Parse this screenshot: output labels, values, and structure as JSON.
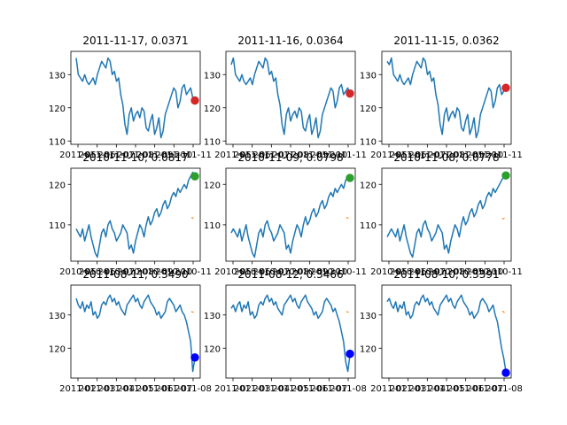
{
  "chart_data": [
    {
      "type": "line",
      "title": "2011-11-17, 0.0371",
      "xlabel": "",
      "ylabel": "",
      "ylim": [
        109,
        137
      ],
      "yticks": [
        110,
        120,
        130
      ],
      "xtick_labels": [
        "2011-05",
        "2011-06",
        "2011-07",
        "2011-08",
        "2011-09",
        "2011-10",
        "2011-11"
      ],
      "series": [
        {
          "color": "#1f77b4",
          "values": [
            135,
            130,
            129,
            128,
            130,
            128,
            127,
            128,
            129,
            127,
            130,
            132,
            134,
            133,
            132,
            135,
            134,
            130,
            131,
            128,
            129,
            124,
            121,
            115,
            112,
            118,
            120,
            116,
            118,
            119,
            117,
            120,
            119,
            114,
            113,
            116,
            118,
            112,
            114,
            117,
            111,
            113,
            118,
            120,
            122,
            124,
            126,
            125,
            120,
            122,
            126,
            127,
            124,
            125,
            126,
            123,
            122
          ]
        }
      ],
      "markers": [
        {
          "color": "#d62728",
          "y": 122.2
        }
      ]
    },
    {
      "type": "line",
      "title": "2011-11-16, 0.0364",
      "xlabel": "",
      "ylabel": "",
      "ylim": [
        109,
        137
      ],
      "yticks": [
        110,
        120,
        130
      ],
      "xtick_labels": [
        "2011-05",
        "2011-06",
        "2011-07",
        "2011-08",
        "2011-09",
        "2011-10",
        "2011-11"
      ],
      "series": [
        {
          "color": "#1f77b4",
          "values": [
            133,
            135,
            130,
            129,
            128,
            130,
            128,
            127,
            128,
            129,
            127,
            130,
            132,
            134,
            133,
            132,
            135,
            134,
            130,
            131,
            128,
            129,
            124,
            121,
            115,
            112,
            118,
            120,
            116,
            118,
            119,
            117,
            120,
            119,
            114,
            113,
            116,
            118,
            112,
            114,
            117,
            111,
            113,
            118,
            120,
            122,
            124,
            126,
            125,
            120,
            122,
            126,
            127,
            124,
            125,
            126,
            124
          ]
        }
      ],
      "markers": [
        {
          "color": "#d62728",
          "y": 124.3
        }
      ]
    },
    {
      "type": "line",
      "title": "2011-11-15, 0.0362",
      "xlabel": "",
      "ylabel": "",
      "ylim": [
        109,
        137
      ],
      "yticks": [
        110,
        120,
        130
      ],
      "xtick_labels": [
        "2011-05",
        "2011-06",
        "2011-07",
        "2011-08",
        "2011-09",
        "2011-10",
        "2011-11"
      ],
      "series": [
        {
          "color": "#1f77b4",
          "values": [
            134,
            133,
            135,
            130,
            129,
            128,
            130,
            128,
            127,
            128,
            129,
            127,
            130,
            132,
            134,
            133,
            132,
            135,
            134,
            130,
            131,
            128,
            129,
            124,
            121,
            115,
            112,
            118,
            120,
            116,
            118,
            119,
            117,
            120,
            119,
            114,
            113,
            116,
            118,
            112,
            114,
            117,
            111,
            113,
            118,
            120,
            122,
            124,
            126,
            125,
            120,
            122,
            126,
            127,
            124,
            125,
            126
          ]
        }
      ],
      "markers": [
        {
          "color": "#d62728",
          "y": 126.0
        }
      ]
    },
    {
      "type": "line",
      "title": "2010-11-10, 0.0817",
      "xlabel": "",
      "ylabel": "",
      "ylim": [
        101,
        124
      ],
      "yticks": [
        110,
        120
      ],
      "xtick_labels": [
        "2010-05",
        "2010-06",
        "2010-07",
        "2010-08",
        "2010-09",
        "2010-10",
        "2010-11"
      ],
      "series": [
        {
          "color": "#1f77b4",
          "values": [
            109,
            108,
            107,
            109,
            106,
            108,
            110,
            107,
            105,
            103,
            102,
            105,
            108,
            109,
            107,
            110,
            111,
            109,
            108,
            106,
            107,
            108,
            110,
            109,
            108,
            104,
            105,
            103,
            106,
            108,
            110,
            109,
            107,
            110,
            112,
            110,
            111,
            113,
            114,
            112,
            113,
            115,
            116,
            114,
            115,
            117,
            118,
            117,
            119,
            118,
            119,
            120,
            119,
            121,
            122,
            123,
            122
          ]
        },
        {
          "color": "#ff7f0e",
          "values": [
            111.8,
            111.6
          ]
        }
      ],
      "markers": [
        {
          "color": "#2ca02c",
          "y": 122.0
        }
      ]
    },
    {
      "type": "line",
      "title": "2010-11-09, 0.0798",
      "xlabel": "",
      "ylabel": "",
      "ylim": [
        101,
        124
      ],
      "yticks": [
        110,
        120
      ],
      "xtick_labels": [
        "2010-05",
        "2010-06",
        "2010-07",
        "2010-08",
        "2010-09",
        "2010-10",
        "2010-11"
      ],
      "series": [
        {
          "color": "#1f77b4",
          "values": [
            108,
            109,
            108,
            107,
            109,
            106,
            108,
            110,
            107,
            105,
            103,
            102,
            105,
            108,
            109,
            107,
            110,
            111,
            109,
            108,
            106,
            107,
            108,
            110,
            109,
            108,
            104,
            105,
            103,
            106,
            108,
            110,
            109,
            107,
            110,
            112,
            110,
            111,
            113,
            114,
            112,
            113,
            115,
            116,
            114,
            115,
            117,
            118,
            117,
            119,
            118,
            119,
            120,
            119,
            121,
            122,
            121.6
          ]
        },
        {
          "color": "#ff7f0e",
          "values": [
            111.8,
            111.6
          ]
        }
      ],
      "markers": [
        {
          "color": "#2ca02c",
          "y": 121.6
        }
      ]
    },
    {
      "type": "line",
      "title": "2010-11-08, 0.0778",
      "xlabel": "",
      "ylabel": "",
      "ylim": [
        101,
        124
      ],
      "yticks": [
        110,
        120
      ],
      "xtick_labels": [
        "2010-05",
        "2010-06",
        "2010-07",
        "2010-08",
        "2010-09",
        "2010-10",
        "2010-11"
      ],
      "series": [
        {
          "color": "#1f77b4",
          "values": [
            107,
            108,
            109,
            108,
            107,
            109,
            106,
            108,
            110,
            107,
            105,
            103,
            102,
            105,
            108,
            109,
            107,
            110,
            111,
            109,
            108,
            106,
            107,
            108,
            110,
            109,
            108,
            104,
            105,
            103,
            106,
            108,
            110,
            109,
            107,
            110,
            112,
            110,
            111,
            113,
            114,
            112,
            113,
            115,
            116,
            114,
            115,
            117,
            118,
            117,
            119,
            118,
            119,
            120,
            121,
            122,
            122.2
          ]
        },
        {
          "color": "#ff7f0e",
          "values": [
            111.4,
            111.7
          ]
        }
      ],
      "markers": [
        {
          "color": "#2ca02c",
          "y": 122.2
        }
      ]
    },
    {
      "type": "line",
      "title": "2011-08-11, 0.3490",
      "xlabel": "",
      "ylabel": "",
      "ylim": [
        111,
        139
      ],
      "yticks": [
        120,
        130
      ],
      "xtick_labels": [
        "2011-02",
        "2011-03",
        "2011-04",
        "2011-05",
        "2011-06",
        "2011-07",
        "2011-08"
      ],
      "series": [
        {
          "color": "#1f77b4",
          "values": [
            135,
            133,
            132,
            134,
            131,
            133,
            132,
            134,
            130,
            131,
            129,
            130,
            133,
            134,
            133,
            135,
            136,
            134,
            135,
            133,
            134,
            132,
            131,
            130,
            133,
            134,
            135,
            136,
            134,
            135,
            133,
            132,
            134,
            135,
            136,
            134,
            133,
            132,
            130,
            131,
            129,
            130,
            131,
            134,
            135,
            134,
            133,
            131,
            132,
            133,
            131,
            130,
            128,
            125,
            122,
            113,
            117
          ]
        },
        {
          "color": "#ff7f0e",
          "values": [
            131.0,
            130.8
          ]
        }
      ],
      "markers": [
        {
          "color": "#0000ff",
          "y": 117.2
        }
      ]
    },
    {
      "type": "line",
      "title": "2011-08-12, 0.3466",
      "xlabel": "",
      "ylabel": "",
      "ylim": [
        111,
        139
      ],
      "yticks": [
        120,
        130
      ],
      "xtick_labels": [
        "2011-02",
        "2011-03",
        "2011-04",
        "2011-05",
        "2011-06",
        "2011-07",
        "2011-08"
      ],
      "series": [
        {
          "color": "#1f77b4",
          "values": [
            132,
            133,
            131,
            133,
            134,
            131,
            133,
            132,
            134,
            130,
            131,
            129,
            130,
            133,
            134,
            133,
            135,
            136,
            134,
            135,
            133,
            134,
            132,
            131,
            130,
            133,
            134,
            135,
            136,
            134,
            135,
            133,
            132,
            134,
            135,
            136,
            134,
            133,
            132,
            130,
            131,
            129,
            130,
            131,
            134,
            135,
            134,
            133,
            131,
            132,
            130,
            128,
            125,
            122,
            116,
            113,
            118
          ]
        },
        {
          "color": "#ff7f0e",
          "values": [
            131.0,
            130.8
          ]
        }
      ],
      "markers": [
        {
          "color": "#0000ff",
          "y": 118.3
        }
      ]
    },
    {
      "type": "line",
      "title": "2011-08-10, 0.3391",
      "xlabel": "",
      "ylabel": "",
      "ylim": [
        111,
        139
      ],
      "yticks": [
        120,
        130
      ],
      "xtick_labels": [
        "2011-02",
        "2011-03",
        "2011-04",
        "2011-05",
        "2011-06",
        "2011-07",
        "2011-08"
      ],
      "series": [
        {
          "color": "#1f77b4",
          "values": [
            134,
            135,
            133,
            132,
            134,
            131,
            133,
            132,
            134,
            130,
            131,
            129,
            130,
            133,
            134,
            133,
            135,
            136,
            134,
            135,
            133,
            134,
            132,
            131,
            130,
            133,
            134,
            135,
            136,
            134,
            135,
            133,
            132,
            134,
            135,
            136,
            134,
            133,
            132,
            130,
            131,
            129,
            130,
            131,
            134,
            135,
            134,
            133,
            131,
            132,
            133,
            130,
            128,
            124,
            120,
            117,
            113
          ]
        },
        {
          "color": "#ff7f0e",
          "values": [
            131.2,
            130.7
          ]
        }
      ],
      "markers": [
        {
          "color": "#0000ff",
          "y": 112.6
        }
      ]
    }
  ]
}
